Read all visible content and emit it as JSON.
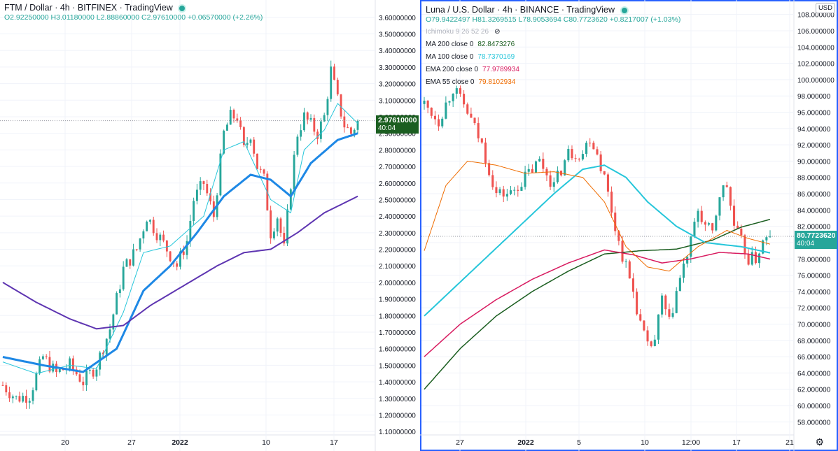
{
  "left": {
    "header": {
      "title": "FTM / Dollar · 4h · BITFINEX · TradingView",
      "ohlc": "O2.92250000  H3.01180000  L2.88860000  C2.97610000  +0.06570000 (+2.26%)"
    },
    "price_tag": {
      "value": "2.97610000",
      "countdown": "40:04",
      "color": "#1b5e20"
    },
    "y_ticks": [
      "3.60000000",
      "3.50000000",
      "3.40000000",
      "3.30000000",
      "3.20000000",
      "3.10000000",
      "3.00000000",
      "2.90000000",
      "2.80000000",
      "2.70000000",
      "2.60000000",
      "2.50000000",
      "2.40000000",
      "2.30000000",
      "2.20000000",
      "2.10000000",
      "2.00000000",
      "1.90000000",
      "1.80000000",
      "1.70000000",
      "1.60000000",
      "1.50000000",
      "1.40000000",
      "1.30000000",
      "1.20000000",
      "1.10000000"
    ],
    "x_ticks": [
      "20",
      "27",
      "2022",
      "10",
      "17"
    ]
  },
  "right": {
    "header": {
      "title": "Luna / U.S. Dollar · 4h · BINANCE · TradingView",
      "ohlc": "O79.9422497  H81.3269515  L78.9053694  C80.7723620  +0.8217007 (+1.03%)",
      "indicators": [
        {
          "label": "Ichimoku 9 26 52 26",
          "value": "",
          "color": "#b2b5be"
        },
        {
          "label": "MA 200 close 0",
          "value": "82.8473276",
          "color": "#1b5e20"
        },
        {
          "label": "MA 100 close 0",
          "value": "78.7370169",
          "color": "#26c6da"
        },
        {
          "label": "EMA 200 close 0",
          "value": "77.9789934",
          "color": "#d81b60"
        },
        {
          "label": "EMA 55 close 0",
          "value": "79.8102934",
          "color": "#ef6c00"
        }
      ]
    },
    "price_tag": {
      "value": "80.7723620",
      "countdown": "40:04",
      "color": "#26a69a"
    },
    "currency": "USD",
    "y_ticks": [
      "108.000000",
      "106.000000",
      "104.000000",
      "102.000000",
      "100.000000",
      "98.000000",
      "96.000000",
      "94.000000",
      "92.000000",
      "90.000000",
      "88.000000",
      "86.000000",
      "84.000000",
      "82.000000",
      "80.000000",
      "78.000000",
      "76.000000",
      "74.000000",
      "72.000000",
      "70.000000",
      "68.000000",
      "66.000000",
      "64.000000",
      "62.000000",
      "60.000000",
      "58.000000"
    ],
    "x_ticks": [
      "27",
      "2022",
      "5",
      "10",
      "12:00",
      "17",
      "21"
    ]
  },
  "colors": {
    "up": "#26a69a",
    "down": "#ef5350",
    "grid": "#f0f3fa",
    "axis_text": "#131722",
    "selected_border": "#2962ff"
  },
  "chart_data": [
    {
      "type": "candlestick",
      "title": "FTM / Dollar · 4h · BITFINEX",
      "ylim": [
        1.05,
        3.65
      ],
      "x_ticks": [
        "20",
        "27",
        "2022",
        "10",
        "17"
      ],
      "anchors_close": [
        [
          0,
          1.38
        ],
        [
          4,
          1.3
        ],
        [
          8,
          1.32
        ],
        [
          12,
          1.55
        ],
        [
          16,
          1.45
        ],
        [
          20,
          1.5
        ],
        [
          24,
          1.4
        ],
        [
          28,
          1.5
        ],
        [
          32,
          1.72
        ],
        [
          36,
          2.08
        ],
        [
          40,
          2.2
        ],
        [
          43,
          2.4
        ],
        [
          46,
          2.3
        ],
        [
          49,
          2.2
        ],
        [
          52,
          2.1
        ],
        [
          55,
          2.25
        ],
        [
          57,
          2.5
        ],
        [
          60,
          2.6
        ],
        [
          63,
          2.4
        ],
        [
          66,
          2.9
        ],
        [
          68,
          3.0
        ],
        [
          70,
          3.0
        ],
        [
          72,
          2.8
        ],
        [
          74,
          2.9
        ],
        [
          76,
          2.7
        ],
        [
          78,
          2.62
        ],
        [
          80,
          2.3
        ],
        [
          82,
          2.4
        ],
        [
          84,
          2.2
        ],
        [
          86,
          2.6
        ],
        [
          88,
          2.9
        ],
        [
          90,
          3.0
        ],
        [
          92,
          2.95
        ],
        [
          94,
          2.9
        ],
        [
          96,
          3.0
        ],
        [
          98,
          3.28
        ],
        [
          100,
          3.1
        ],
        [
          102,
          2.95
        ],
        [
          104,
          2.9
        ],
        [
          106,
          2.976
        ]
      ],
      "overlays": [
        {
          "name": "",
          "color": "#26c6da",
          "width": 1,
          "points": [
            [
              0,
              1.52
            ],
            [
              10,
              1.45
            ],
            [
              20,
              1.5
            ],
            [
              28,
              1.48
            ],
            [
              36,
              1.82
            ],
            [
              42,
              2.18
            ],
            [
              50,
              2.22
            ],
            [
              60,
              2.4
            ],
            [
              66,
              2.8
            ],
            [
              72,
              2.85
            ],
            [
              80,
              2.5
            ],
            [
              86,
              2.42
            ],
            [
              90,
              2.8
            ],
            [
              96,
              2.92
            ],
            [
              100,
              3.08
            ],
            [
              106,
              2.96
            ]
          ]
        },
        {
          "name": "",
          "color": "#1e88e5",
          "width": 3,
          "points": [
            [
              0,
              1.55
            ],
            [
              12,
              1.5
            ],
            [
              24,
              1.46
            ],
            [
              34,
              1.6
            ],
            [
              42,
              1.95
            ],
            [
              50,
              2.1
            ],
            [
              58,
              2.3
            ],
            [
              66,
              2.52
            ],
            [
              74,
              2.65
            ],
            [
              80,
              2.62
            ],
            [
              86,
              2.52
            ],
            [
              92,
              2.72
            ],
            [
              100,
              2.86
            ],
            [
              106,
              2.9
            ]
          ]
        },
        {
          "name": "",
          "color": "#5e35b1",
          "width": 2,
          "points": [
            [
              0,
              2.0
            ],
            [
              10,
              1.88
            ],
            [
              20,
              1.78
            ],
            [
              28,
              1.72
            ],
            [
              36,
              1.74
            ],
            [
              44,
              1.86
            ],
            [
              54,
              1.98
            ],
            [
              64,
              2.1
            ],
            [
              72,
              2.18
            ],
            [
              80,
              2.2
            ],
            [
              88,
              2.3
            ],
            [
              96,
              2.42
            ],
            [
              106,
              2.52
            ]
          ]
        }
      ]
    },
    {
      "type": "candlestick",
      "title": "Luna / U.S. Dollar · 4h · BINANCE",
      "ylim": [
        57,
        109
      ],
      "x_ticks": [
        "27",
        "2022",
        "5",
        "10",
        "12:00",
        "17",
        "21"
      ],
      "anchors_close": [
        [
          0,
          97
        ],
        [
          4,
          95
        ],
        [
          8,
          99
        ],
        [
          12,
          96
        ],
        [
          16,
          92
        ],
        [
          20,
          86
        ],
        [
          24,
          86
        ],
        [
          28,
          88
        ],
        [
          32,
          90
        ],
        [
          36,
          87
        ],
        [
          40,
          91
        ],
        [
          44,
          91
        ],
        [
          46,
          93
        ],
        [
          48,
          91
        ],
        [
          50,
          88
        ],
        [
          52,
          84
        ],
        [
          54,
          80
        ],
        [
          56,
          77
        ],
        [
          58,
          74
        ],
        [
          60,
          70
        ],
        [
          62,
          67
        ],
        [
          64,
          68
        ],
        [
          66,
          73
        ],
        [
          68,
          70
        ],
        [
          70,
          74
        ],
        [
          72,
          77
        ],
        [
          74,
          80
        ],
        [
          76,
          84
        ],
        [
          78,
          82
        ],
        [
          80,
          81
        ],
        [
          82,
          86
        ],
        [
          84,
          87
        ],
        [
          86,
          82
        ],
        [
          88,
          80
        ],
        [
          90,
          78
        ],
        [
          92,
          78
        ],
        [
          94,
          80
        ],
        [
          96,
          80.77
        ]
      ],
      "overlays": [
        {
          "name": "MA 200 close 0",
          "color": "#1b5e20",
          "width": 1.5,
          "points": [
            [
              0,
              62
            ],
            [
              10,
              67
            ],
            [
              20,
              71
            ],
            [
              30,
              74
            ],
            [
              40,
              76.5
            ],
            [
              50,
              78.6
            ],
            [
              60,
              79
            ],
            [
              70,
              79.2
            ],
            [
              80,
              80.3
            ],
            [
              88,
              81.9
            ],
            [
              96,
              82.85
            ]
          ]
        },
        {
          "name": "MA 100 close 0",
          "color": "#26c6da",
          "width": 2,
          "points": [
            [
              0,
              71
            ],
            [
              12,
              76
            ],
            [
              24,
              81
            ],
            [
              36,
              86
            ],
            [
              44,
              89
            ],
            [
              50,
              89.5
            ],
            [
              56,
              88
            ],
            [
              62,
              85
            ],
            [
              70,
              82
            ],
            [
              78,
              80
            ],
            [
              88,
              79.5
            ],
            [
              96,
              78.74
            ]
          ]
        },
        {
          "name": "EMA 200 close 0",
          "color": "#d81b60",
          "width": 1.5,
          "points": [
            [
              0,
              66
            ],
            [
              10,
              70
            ],
            [
              20,
              73
            ],
            [
              30,
              75.5
            ],
            [
              40,
              77.5
            ],
            [
              50,
              79.1
            ],
            [
              58,
              78.5
            ],
            [
              66,
              77.5
            ],
            [
              74,
              78
            ],
            [
              82,
              78.8
            ],
            [
              90,
              78.6
            ],
            [
              96,
              77.98
            ]
          ]
        },
        {
          "name": "EMA 55 close 0",
          "color": "#ef6c00",
          "width": 1,
          "points": [
            [
              0,
              79
            ],
            [
              6,
              87
            ],
            [
              12,
              90
            ],
            [
              20,
              89.5
            ],
            [
              28,
              88.5
            ],
            [
              36,
              88.7
            ],
            [
              44,
              88
            ],
            [
              50,
              85
            ],
            [
              56,
              79.5
            ],
            [
              62,
              77
            ],
            [
              68,
              76.5
            ],
            [
              76,
              79.5
            ],
            [
              84,
              81.5
            ],
            [
              90,
              80.5
            ],
            [
              96,
              79.81
            ]
          ]
        }
      ]
    }
  ]
}
